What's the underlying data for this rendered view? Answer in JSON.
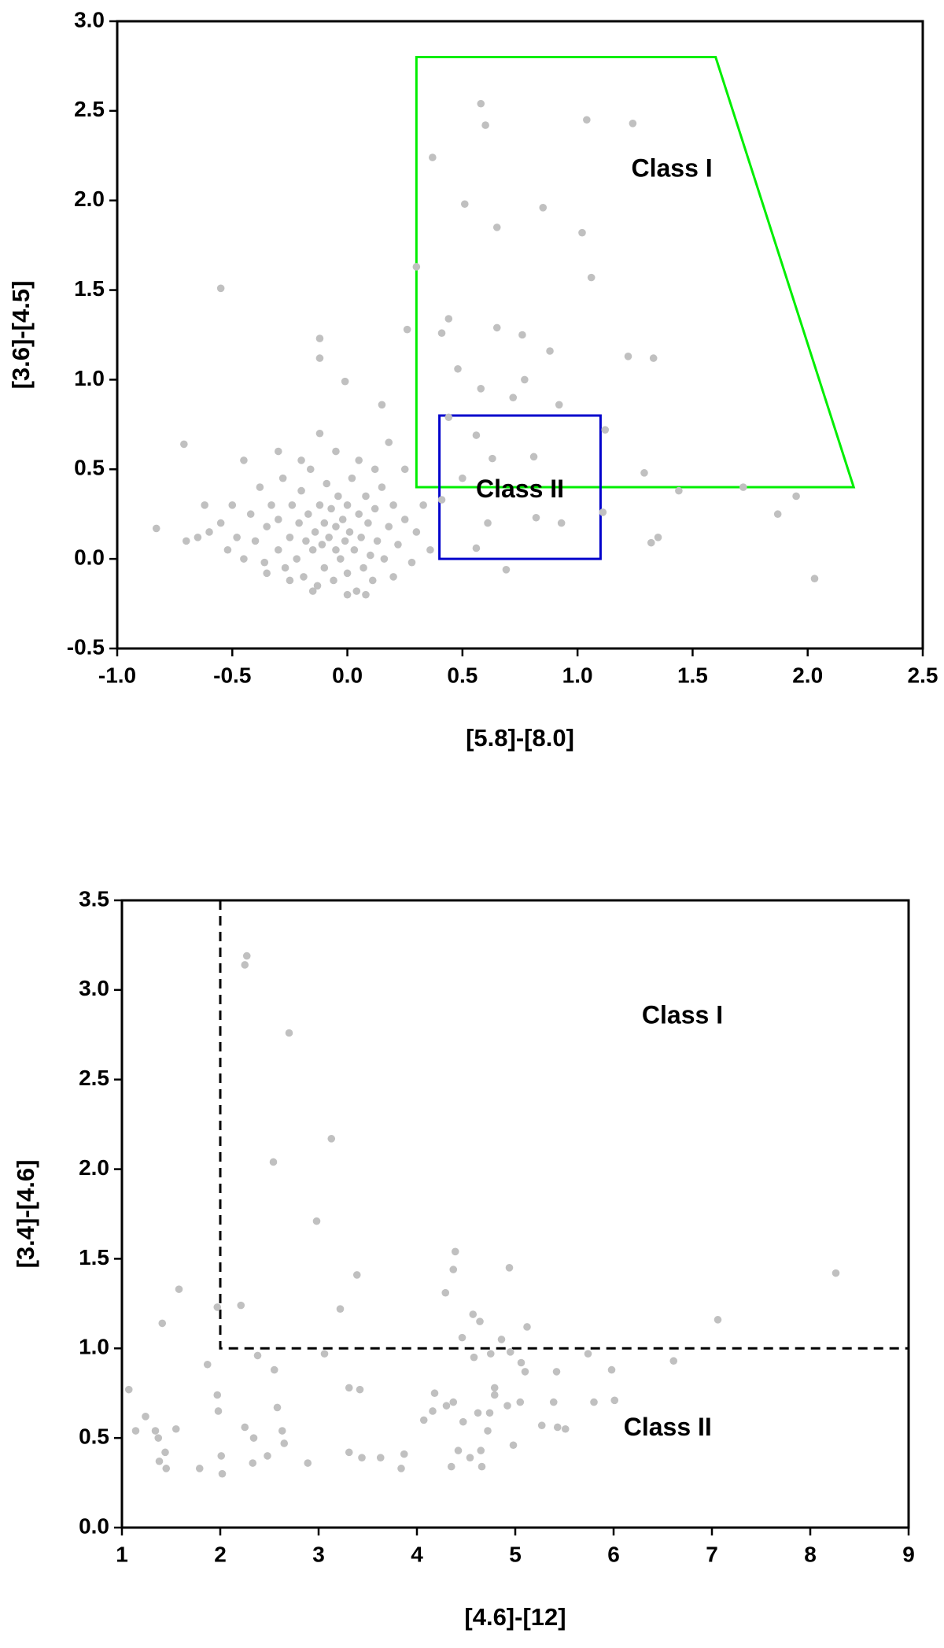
{
  "chart_data": [
    {
      "type": "scatter",
      "x_label": "[5.8]-[8.0]",
      "y_label": "[3.6]-[4.5]",
      "xlim": [
        -1,
        2.5
      ],
      "ylim": [
        -0.5,
        3
      ],
      "xticks": [
        {
          "value": -1,
          "label": "-1.0"
        },
        -0.5,
        {
          "value": 0,
          "label": "0.0"
        },
        0.5,
        {
          "value": 1,
          "label": "1.0"
        },
        1.5,
        {
          "value": 2,
          "label": "2.0"
        },
        2.5
      ],
      "yticks": [
        -0.5,
        {
          "value": 0,
          "label": "0.0"
        },
        0.5,
        {
          "value": 1,
          "label": "1.0"
        },
        1.5,
        {
          "value": 2,
          "label": "2.0"
        },
        2.5,
        {
          "value": 3,
          "label": "3.0"
        }
      ],
      "series": [
        {
          "color": "#c0c0c0",
          "x": [
            0.58,
            0.6,
            1.04,
            1.24,
            0.37,
            0.51,
            0.85,
            0.65,
            1.02,
            1.06,
            0.3,
            -0.55,
            0.44,
            0.26,
            0.41,
            0.65,
            0.76,
            -0.12,
            -0.12,
            0.88,
            1.22,
            1.33,
            0.48,
            -0.01,
            0.77,
            0.58,
            0.72,
            0.92,
            0.15,
            1.12,
            0.44,
            -0.71,
            1.29,
            1.44,
            1.72,
            1.87,
            1.95,
            1.32,
            1.35,
            2.03,
            -0.83,
            0.69,
            0.56,
            0.63,
            0.81,
            1.11,
            0.93,
            0.82,
            0.56,
            0.61,
            0.41,
            0.5,
            -0.6,
            -0.55,
            -0.52,
            -0.5,
            -0.48,
            -0.45,
            -0.42,
            -0.4,
            -0.38,
            -0.36,
            -0.35,
            -0.33,
            -0.3,
            -0.3,
            -0.28,
            -0.27,
            -0.25,
            -0.24,
            -0.22,
            -0.21,
            -0.2,
            -0.19,
            -0.18,
            -0.17,
            -0.16,
            -0.15,
            -0.14,
            -0.13,
            -0.12,
            -0.11,
            -0.1,
            -0.1,
            -0.09,
            -0.08,
            -0.07,
            -0.06,
            -0.05,
            -0.05,
            -0.04,
            -0.03,
            -0.02,
            -0.01,
            0,
            0,
            0.01,
            0.02,
            0.03,
            0.04,
            0.05,
            0.06,
            0.07,
            0.08,
            0.09,
            0.1,
            0.11,
            0.12,
            0.13,
            0.15,
            0.16,
            0.18,
            0.2,
            0.22,
            0.25,
            0.28,
            0.3,
            0.33,
            0.36,
            -0.65,
            -0.7,
            -0.62,
            -0.45,
            -0.3,
            -0.2,
            -0.12,
            -0.05,
            0.05,
            0.12,
            0.18,
            -0.35,
            -0.15,
            0,
            0.08,
            -0.25,
            0.2,
            0.25
          ],
          "y": [
            2.54,
            2.42,
            2.45,
            2.43,
            2.24,
            1.98,
            1.96,
            1.85,
            1.82,
            1.57,
            1.63,
            1.51,
            1.34,
            1.28,
            1.26,
            1.29,
            1.25,
            1.23,
            1.12,
            1.16,
            1.13,
            1.12,
            1.06,
            0.99,
            1.0,
            0.95,
            0.9,
            0.86,
            0.86,
            0.72,
            0.79,
            0.64,
            0.48,
            0.38,
            0.4,
            0.25,
            0.35,
            0.09,
            0.12,
            -0.11,
            0.17,
            -0.06,
            0.69,
            0.56,
            0.57,
            0.26,
            0.2,
            0.23,
            0.06,
            0.2,
            0.33,
            0.45,
            0.15,
            0.2,
            0.05,
            0.3,
            0.12,
            0,
            0.25,
            0.1,
            0.4,
            -0.02,
            0.18,
            0.3,
            0.05,
            0.22,
            0.45,
            -0.05,
            0.12,
            0.3,
            0,
            0.2,
            0.38,
            -0.1,
            0.1,
            0.25,
            0.5,
            0.05,
            0.15,
            -0.15,
            0.3,
            0.08,
            0.2,
            -0.05,
            0.42,
            0.12,
            0.28,
            -0.12,
            0.05,
            0.18,
            0.35,
            0,
            0.22,
            0.1,
            -0.08,
            0.3,
            0.15,
            0.45,
            0.05,
            -0.18,
            0.25,
            0.12,
            -0.05,
            0.35,
            0.2,
            0.02,
            -0.12,
            0.28,
            0.1,
            0.4,
            0,
            0.18,
            0.3,
            0.08,
            0.22,
            -0.02,
            0.15,
            0.3,
            0.05,
            0.12,
            0.1,
            0.3,
            0.55,
            0.6,
            0.55,
            0.7,
            0.6,
            0.55,
            0.5,
            0.65,
            -0.08,
            -0.18,
            -0.2,
            -0.2,
            -0.12,
            -0.1,
            0.5
          ]
        }
      ],
      "shapes": [
        {
          "type": "polygon",
          "color": "#00ee00",
          "x": [
            0.3,
            0.3,
            1.6,
            2.2
          ],
          "y": [
            0.4,
            2.8,
            2.8,
            0.4
          ]
        },
        {
          "type": "polygon",
          "color": "#0000cc",
          "x": [
            0.4,
            0.4,
            1.1,
            1.1
          ],
          "y": [
            0,
            0.8,
            0.8,
            0
          ]
        }
      ],
      "annotations": [
        {
          "text": "Class I",
          "x": 1.41,
          "y": 2.17
        },
        {
          "text": "Class II",
          "x": 0.75,
          "y": 0.38
        }
      ]
    },
    {
      "type": "scatter",
      "x_label": "[4.6]-[12]",
      "y_label": "[3.4]-[4.6]",
      "xlim": [
        1,
        9
      ],
      "ylim": [
        0,
        3.5
      ],
      "xticks": [
        1,
        2,
        3,
        4,
        5,
        6,
        7,
        8,
        9
      ],
      "yticks": [
        {
          "value": 0,
          "label": "0.0"
        },
        0.5,
        {
          "value": 1,
          "label": "1.0"
        },
        1.5,
        {
          "value": 2,
          "label": "2.0"
        },
        2.5,
        {
          "value": 3,
          "label": "3.0"
        },
        3.5
      ],
      "series": [
        {
          "color": "#c0c0c0",
          "x": [
            2.25,
            2.27,
            2.7,
            3.13,
            2.54,
            2.98,
            4.39,
            8.26,
            7.06,
            4.94,
            3.39,
            4.37,
            4.29,
            2.21,
            1.97,
            1.58,
            1.41,
            3.22,
            4.57,
            4.64,
            4.86,
            5.12,
            4.46,
            4.75,
            4.95,
            5.06,
            5.1,
            5.42,
            5.74,
            5.98,
            6.61,
            1.87,
            2.38,
            2.55,
            3.06,
            4.58,
            1.07,
            1.24,
            1.14,
            1.34,
            1.37,
            1.55,
            1.44,
            1.45,
            1.79,
            1.38,
            1.97,
            1.98,
            2.25,
            2.34,
            2.58,
            2.63,
            2.65,
            2.48,
            2.33,
            2.01,
            2.02,
            2.89,
            3.31,
            3.42,
            3.31,
            3.44,
            3.63,
            3.84,
            3.87,
            4.07,
            4.18,
            4.16,
            4.3,
            4.37,
            4.47,
            4.62,
            4.42,
            4.35,
            4.54,
            4.65,
            4.66,
            4.72,
            4.74,
            4.79,
            4.79,
            4.92,
            4.98,
            5.05,
            5.27,
            5.39,
            5.43,
            5.51,
            5.8,
            6.01
          ],
          "y": [
            3.14,
            3.19,
            2.76,
            2.17,
            2.04,
            1.71,
            1.54,
            1.42,
            1.16,
            1.45,
            1.41,
            1.44,
            1.31,
            1.24,
            1.23,
            1.33,
            1.14,
            1.22,
            1.19,
            1.15,
            1.05,
            1.12,
            1.06,
            0.97,
            0.98,
            0.92,
            0.87,
            0.87,
            0.97,
            0.88,
            0.93,
            0.91,
            0.96,
            0.88,
            0.97,
            0.95,
            0.77,
            0.62,
            0.54,
            0.54,
            0.5,
            0.55,
            0.42,
            0.33,
            0.33,
            0.37,
            0.74,
            0.65,
            0.56,
            0.5,
            0.67,
            0.54,
            0.47,
            0.4,
            0.36,
            0.4,
            0.3,
            0.36,
            0.78,
            0.77,
            0.42,
            0.39,
            0.39,
            0.33,
            0.41,
            0.6,
            0.75,
            0.65,
            0.68,
            0.7,
            0.59,
            0.64,
            0.43,
            0.34,
            0.39,
            0.43,
            0.34,
            0.54,
            0.64,
            0.74,
            0.78,
            0.68,
            0.46,
            0.7,
            0.57,
            0.7,
            0.56,
            0.55,
            0.7,
            0.71
          ]
        }
      ],
      "shapes": [
        {
          "type": "polyline",
          "dashed": true,
          "color": "#000000",
          "x": [
            2,
            2,
            9
          ],
          "y": [
            3.5,
            1,
            1
          ]
        }
      ],
      "annotations": [
        {
          "text": "Class I",
          "x": 6.7,
          "y": 2.85
        },
        {
          "text": "Class II",
          "x": 6.55,
          "y": 0.55
        }
      ]
    }
  ]
}
